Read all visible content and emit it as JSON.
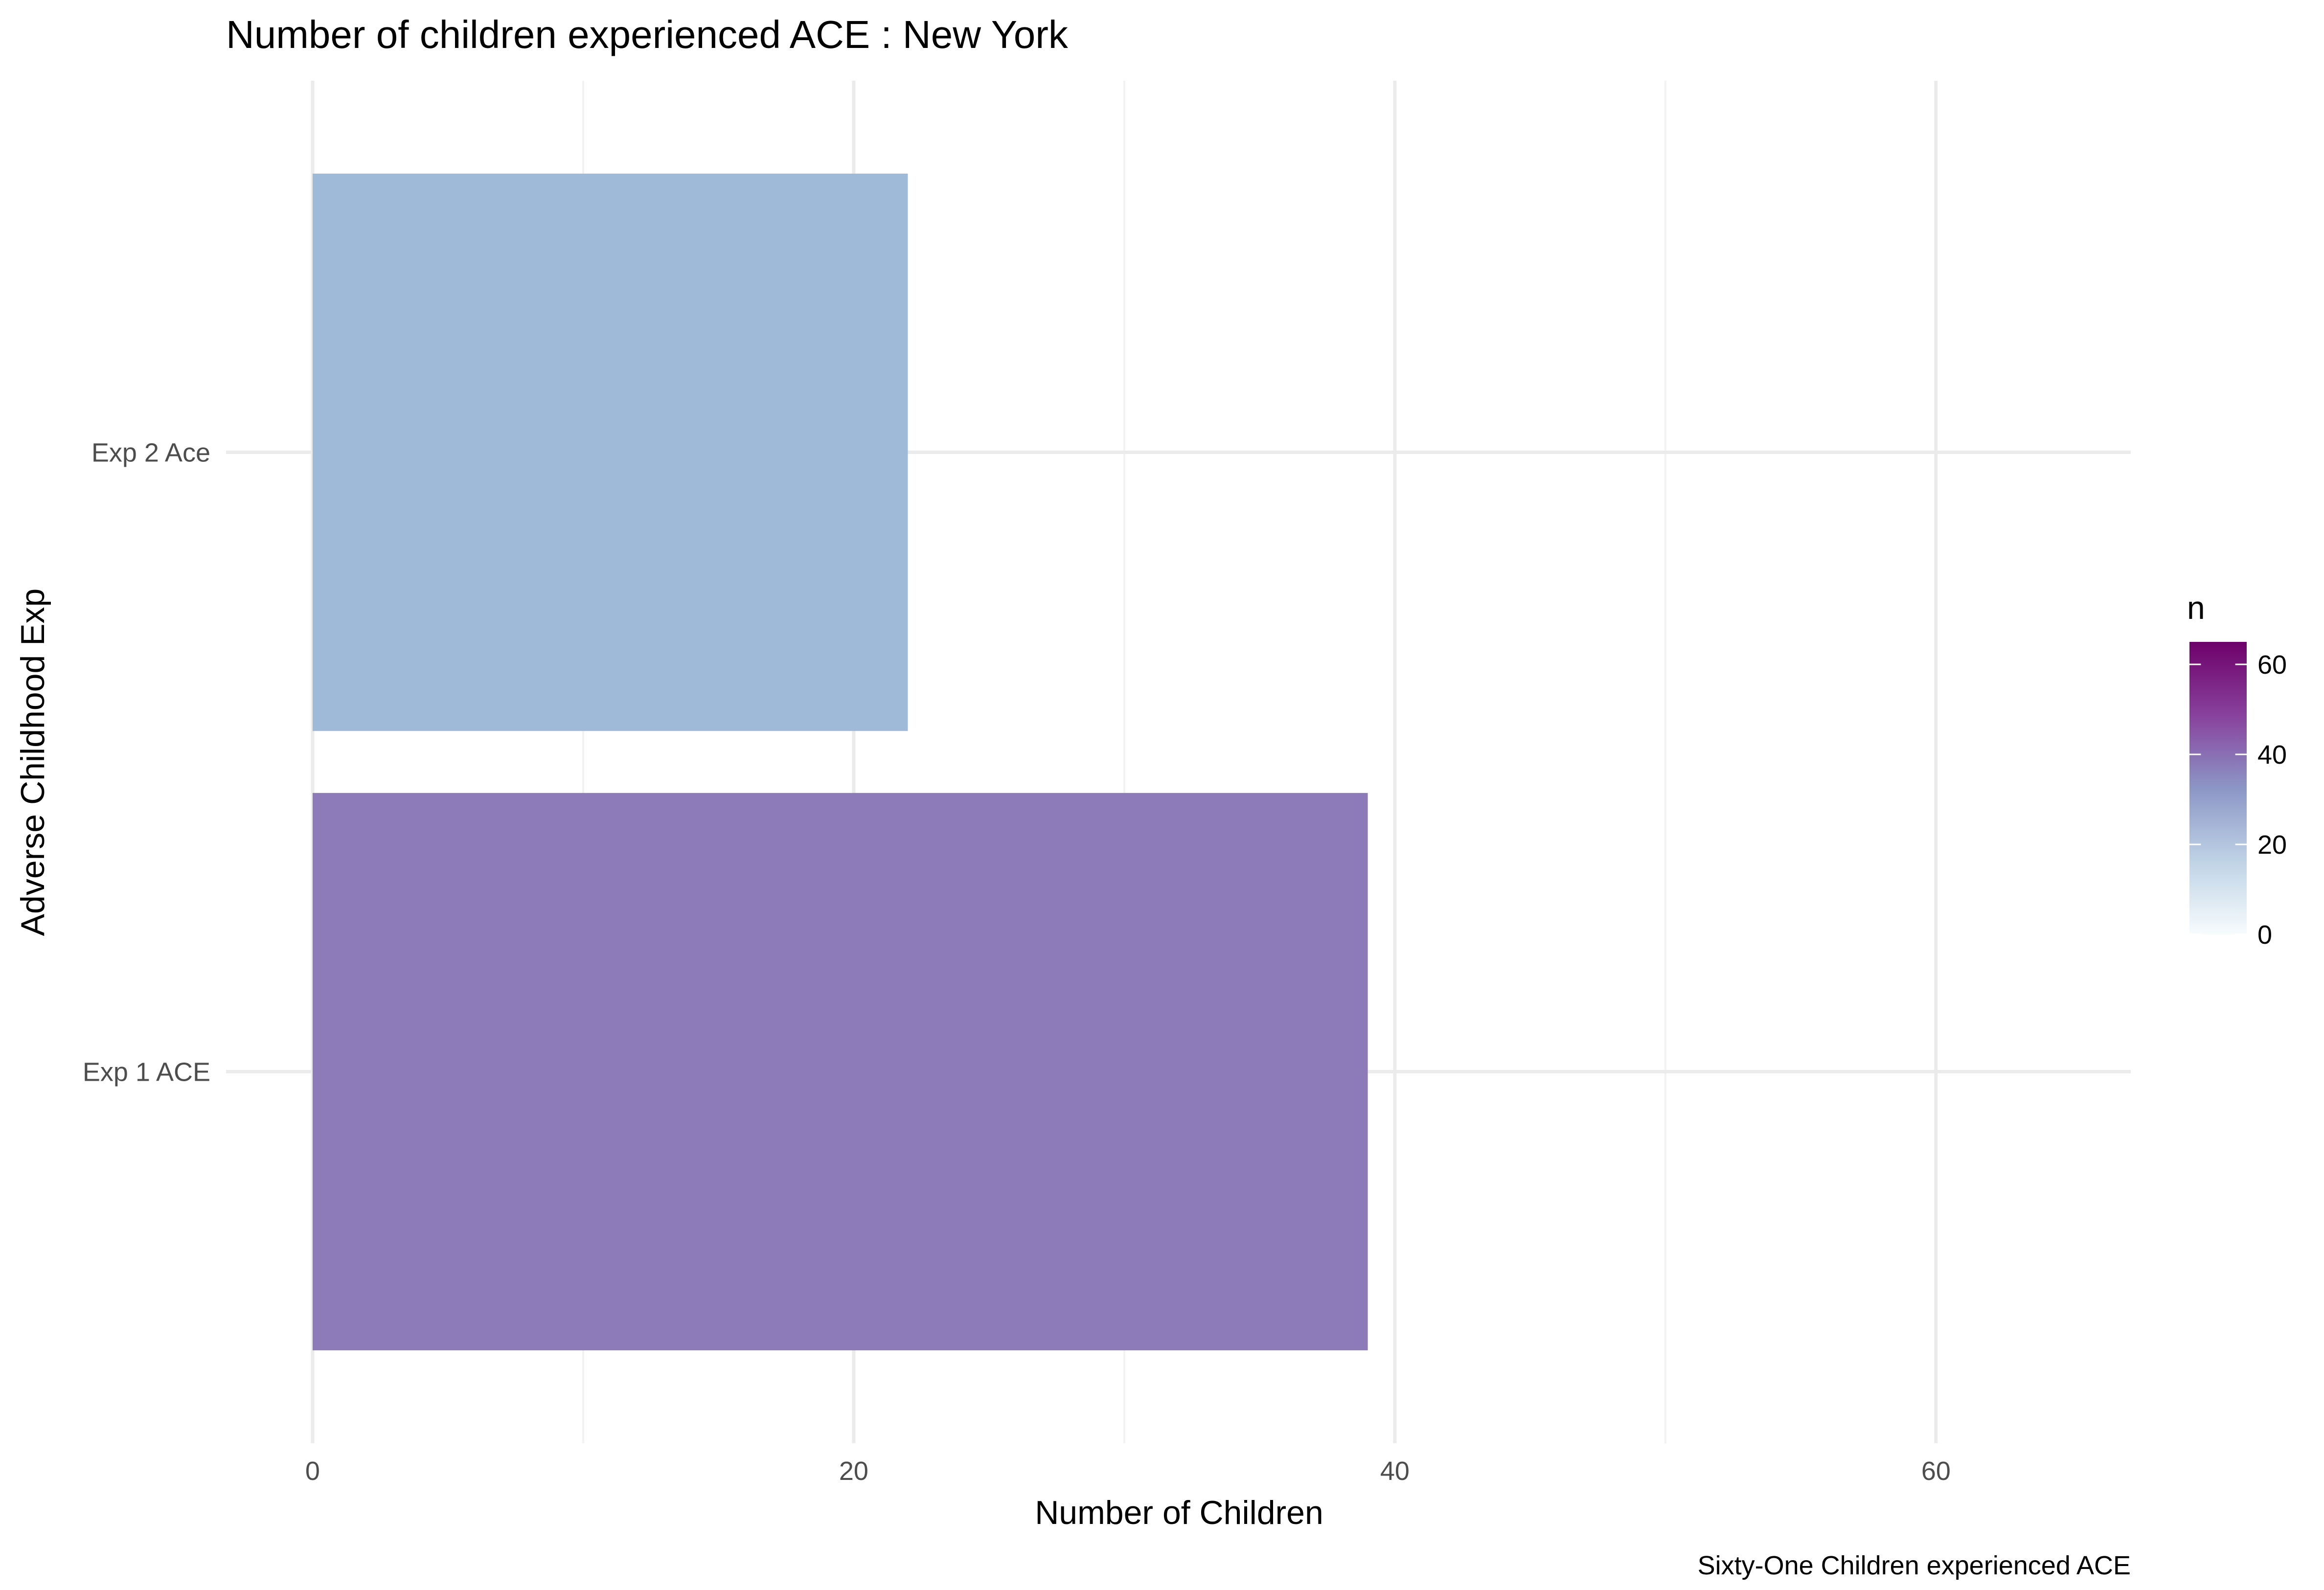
{
  "chart_data": {
    "type": "bar",
    "orientation": "horizontal",
    "title": "Number of children experienced ACE : New York",
    "xlabel": "Number of Children",
    "ylabel": "Adverse Childhood Exp",
    "caption": "Sixty-One Children experienced ACE",
    "categories": [
      "Exp 1 ACE",
      "Exp 2 Ace"
    ],
    "values": [
      39,
      22
    ],
    "xlim": [
      -3.2,
      67.2
    ],
    "xticks": [
      0,
      20,
      40,
      60
    ],
    "xtick_labels": [
      "0",
      "20",
      "40",
      "60"
    ],
    "grid": true,
    "legend": {
      "title": "n",
      "position": "right",
      "type": "colorbar",
      "range": [
        0,
        65
      ],
      "ticks": [
        0,
        20,
        40,
        60
      ],
      "tick_labels": [
        "0",
        "20",
        "40",
        "60"
      ],
      "colors": [
        "#f7fcfd",
        "#bfd3e6",
        "#8c96c6",
        "#88419d",
        "#6e016b"
      ]
    },
    "bar_colors": [
      "#8d7bb9",
      "#9fbad8"
    ]
  }
}
